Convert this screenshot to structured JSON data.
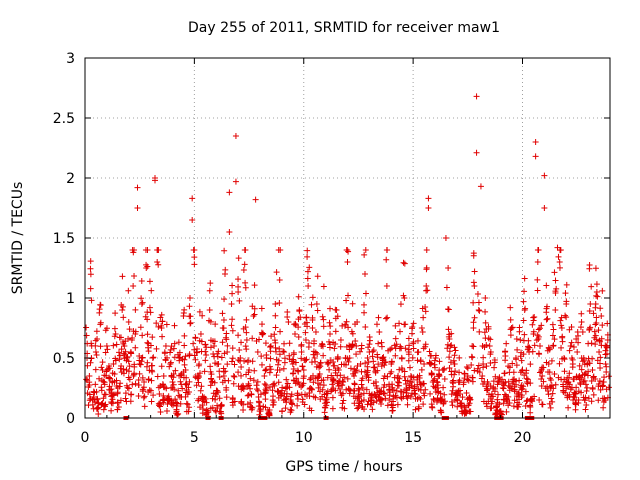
{
  "chart_data": {
    "type": "scatter",
    "title": "Day 255 of 2011, SRMTID for receiver maw1",
    "xlabel": "GPS time / hours",
    "ylabel": "SRMTID / TECUs",
    "xlim": [
      0,
      24
    ],
    "ylim": [
      0,
      3
    ],
    "x_ticks": [
      0,
      5,
      10,
      15,
      20
    ],
    "x_tick_labels": [
      "0",
      "5",
      "10",
      "15",
      "20"
    ],
    "y_ticks": [
      0,
      0.5,
      1,
      1.5,
      2,
      2.5,
      3
    ],
    "y_tick_labels": [
      "0",
      "0.5",
      "1",
      "1.5",
      "2",
      "2.5",
      "3"
    ],
    "grid": true,
    "marker": "+",
    "color": "#e00000",
    "series": [
      {
        "name": "SRMTID",
        "notable_points": [
          {
            "x": 2.4,
            "y": 1.92
          },
          {
            "x": 3.2,
            "y": 2.0
          },
          {
            "x": 3.2,
            "y": 1.98
          },
          {
            "x": 4.9,
            "y": 1.83
          },
          {
            "x": 4.9,
            "y": 1.65
          },
          {
            "x": 6.6,
            "y": 1.88
          },
          {
            "x": 6.9,
            "y": 2.35
          },
          {
            "x": 6.9,
            "y": 1.97
          },
          {
            "x": 7.8,
            "y": 1.82
          },
          {
            "x": 15.7,
            "y": 1.83
          },
          {
            "x": 15.7,
            "y": 1.75
          },
          {
            "x": 17.9,
            "y": 2.68
          },
          {
            "x": 17.9,
            "y": 2.21
          },
          {
            "x": 18.1,
            "y": 1.93
          },
          {
            "x": 20.6,
            "y": 2.3
          },
          {
            "x": 20.6,
            "y": 2.18
          },
          {
            "x": 21.0,
            "y": 2.02
          },
          {
            "x": 21.0,
            "y": 1.75
          },
          {
            "x": 2.4,
            "y": 1.75
          },
          {
            "x": 6.6,
            "y": 1.55
          },
          {
            "x": 16.5,
            "y": 1.5
          },
          {
            "x": 21.6,
            "y": 1.42
          }
        ],
        "bulk_points": [
          [
            0.1,
            0.62
          ],
          [
            0.2,
            0.35
          ],
          [
            0.3,
            0.98
          ],
          [
            0.4,
            0.22
          ],
          [
            0.5,
            0.55
          ],
          [
            0.6,
            0.12
          ],
          [
            0.7,
            0.78
          ],
          [
            0.8,
            0.4
          ],
          [
            0.9,
            0.28
          ],
          [
            1.0,
            0.6
          ],
          [
            1.1,
            0.33
          ],
          [
            1.2,
            0.18
          ],
          [
            1.3,
            0.45
          ],
          [
            1.4,
            0.7
          ],
          [
            1.5,
            0.25
          ],
          [
            1.6,
            0.52
          ],
          [
            1.7,
            0.9
          ],
          [
            1.8,
            0.6
          ],
          [
            1.9,
            0.4
          ],
          [
            2.0,
            0.8
          ],
          [
            2.1,
            0.55
          ],
          [
            2.2,
            1.1
          ],
          [
            2.3,
            0.7
          ],
          [
            2.5,
            0.45
          ],
          [
            2.6,
            0.95
          ],
          [
            2.7,
            0.3
          ],
          [
            2.8,
            1.25
          ],
          [
            2.9,
            0.62
          ],
          [
            3.0,
            0.88
          ],
          [
            3.1,
            0.5
          ],
          [
            3.3,
            1.3
          ],
          [
            3.4,
            0.2
          ],
          [
            3.5,
            0.75
          ],
          [
            3.6,
            0.35
          ],
          [
            3.7,
            0.6
          ],
          [
            3.8,
            0.15
          ],
          [
            3.9,
            0.45
          ],
          [
            4.0,
            0.3
          ],
          [
            4.1,
            0.62
          ],
          [
            4.2,
            0.1
          ],
          [
            4.3,
            0.5
          ],
          [
            4.4,
            0.28
          ],
          [
            4.5,
            0.85
          ],
          [
            4.6,
            0.4
          ],
          [
            4.7,
            0.2
          ],
          [
            4.8,
            1.0
          ],
          [
            5.0,
            1.28
          ],
          [
            5.1,
            0.55
          ],
          [
            5.2,
            0.35
          ],
          [
            5.3,
            0.7
          ],
          [
            5.4,
            0.15
          ],
          [
            5.5,
            0.48
          ],
          [
            5.6,
            0.05
          ],
          [
            5.7,
            0.9
          ],
          [
            5.8,
            0.3
          ],
          [
            5.9,
            0.6
          ],
          [
            6.0,
            0.2
          ],
          [
            6.1,
            0.45
          ],
          [
            6.2,
            0.1
          ],
          [
            6.3,
            0.75
          ],
          [
            6.4,
            1.2
          ],
          [
            6.5,
            0.55
          ],
          [
            6.7,
            0.95
          ],
          [
            6.8,
            0.35
          ],
          [
            7.0,
            1.05
          ],
          [
            7.1,
            0.5
          ],
          [
            7.2,
            0.25
          ],
          [
            7.3,
            1.28
          ],
          [
            7.4,
            0.65
          ],
          [
            7.5,
            0.4
          ],
          [
            7.6,
            0.2
          ],
          [
            7.7,
            0.85
          ],
          [
            7.9,
            0.55
          ],
          [
            8.0,
            0.1
          ],
          [
            8.1,
            0.7
          ],
          [
            8.2,
            0.35
          ],
          [
            8.3,
            0.5
          ],
          [
            8.4,
            0.05
          ],
          [
            8.5,
            0.6
          ],
          [
            8.6,
            0.28
          ],
          [
            8.7,
            0.95
          ],
          [
            8.8,
            0.4
          ],
          [
            8.9,
            1.15
          ],
          [
            9.0,
            0.2
          ],
          [
            9.1,
            0.55
          ],
          [
            9.2,
            0.32
          ],
          [
            9.3,
            0.8
          ],
          [
            9.4,
            0.15
          ],
          [
            9.5,
            0.45
          ],
          [
            9.6,
            0.7
          ],
          [
            9.7,
            0.3
          ],
          [
            9.8,
            0.9
          ],
          [
            9.9,
            0.55
          ],
          [
            10.0,
            0.4
          ],
          [
            10.1,
            0.65
          ],
          [
            10.2,
            1.1
          ],
          [
            10.3,
            0.25
          ],
          [
            10.4,
            0.75
          ],
          [
            10.5,
            0.5
          ],
          [
            10.6,
            0.95
          ],
          [
            10.7,
            0.35
          ],
          [
            10.8,
            0.6
          ],
          [
            10.9,
            0.82
          ],
          [
            11.0,
            0.15
          ],
          [
            11.1,
            0.45
          ],
          [
            11.2,
            0.7
          ],
          [
            11.3,
            0.28
          ],
          [
            11.4,
            0.58
          ],
          [
            11.5,
            0.9
          ],
          [
            11.6,
            0.4
          ],
          [
            11.7,
            0.65
          ],
          [
            11.8,
            0.3
          ],
          [
            11.9,
            0.78
          ],
          [
            12.0,
            1.3
          ],
          [
            12.1,
            0.5
          ],
          [
            12.2,
            0.72
          ],
          [
            12.3,
            0.35
          ],
          [
            12.4,
            0.6
          ],
          [
            12.5,
            0.2
          ],
          [
            12.6,
            0.45
          ],
          [
            12.7,
            0.25
          ],
          [
            12.8,
            1.2
          ],
          [
            12.9,
            0.38
          ],
          [
            13.0,
            0.55
          ],
          [
            13.1,
            0.15
          ],
          [
            13.2,
            0.42
          ],
          [
            13.3,
            0.3
          ],
          [
            13.4,
            0.62
          ],
          [
            13.5,
            0.22
          ],
          [
            13.6,
            0.5
          ],
          [
            13.7,
            0.35
          ],
          [
            13.8,
            1.1
          ],
          [
            13.9,
            0.28
          ],
          [
            14.0,
            0.45
          ],
          [
            14.1,
            0.18
          ],
          [
            14.2,
            0.58
          ],
          [
            14.3,
            0.3
          ],
          [
            14.4,
            0.72
          ],
          [
            14.5,
            0.4
          ],
          [
            14.6,
            1.0
          ],
          [
            14.7,
            0.25
          ],
          [
            14.8,
            0.55
          ],
          [
            14.9,
            0.35
          ],
          [
            15.0,
            0.62
          ],
          [
            15.1,
            0.2
          ],
          [
            15.2,
            0.48
          ],
          [
            15.3,
            0.3
          ],
          [
            15.4,
            0.75
          ],
          [
            15.5,
            0.45
          ],
          [
            15.6,
            1.1
          ],
          [
            15.8,
            0.52
          ],
          [
            15.9,
            0.3
          ],
          [
            16.0,
            0.42
          ],
          [
            16.1,
            0.25
          ],
          [
            16.2,
            0.35
          ],
          [
            16.3,
            0.15
          ],
          [
            16.4,
            0.4
          ],
          [
            16.6,
            1.25
          ],
          [
            16.7,
            0.6
          ],
          [
            16.8,
            0.3
          ],
          [
            16.9,
            0.45
          ],
          [
            17.0,
            0.2
          ],
          [
            17.1,
            0.38
          ],
          [
            17.2,
            0.1
          ],
          [
            17.3,
            0.28
          ],
          [
            17.4,
            0.05
          ],
          [
            17.5,
            0.35
          ],
          [
            17.6,
            0.15
          ],
          [
            17.7,
            0.6
          ],
          [
            17.8,
            1.1
          ],
          [
            18.0,
            0.9
          ],
          [
            18.2,
            0.45
          ],
          [
            18.3,
            1.0
          ],
          [
            18.4,
            0.3
          ],
          [
            18.5,
            0.6
          ],
          [
            18.6,
            0.2
          ],
          [
            18.7,
            0.42
          ],
          [
            18.8,
            0.1
          ],
          [
            18.9,
            0.3
          ],
          [
            19.0,
            0.05
          ],
          [
            19.1,
            0.25
          ],
          [
            19.2,
            0.55
          ],
          [
            19.3,
            0.15
          ],
          [
            19.4,
            0.38
          ],
          [
            19.5,
            0.75
          ],
          [
            19.6,
            0.3
          ],
          [
            19.7,
            0.5
          ],
          [
            19.8,
            0.2
          ],
          [
            19.9,
            0.65
          ],
          [
            20.0,
            0.4
          ],
          [
            20.1,
            0.9
          ],
          [
            20.2,
            0.3
          ],
          [
            20.3,
            0.55
          ],
          [
            20.4,
            0.15
          ],
          [
            20.5,
            0.7
          ],
          [
            20.7,
            1.3
          ],
          [
            20.8,
            0.6
          ],
          [
            20.9,
            0.35
          ],
          [
            21.1,
            0.82
          ],
          [
            21.2,
            0.45
          ],
          [
            21.3,
            0.25
          ],
          [
            21.4,
            0.6
          ],
          [
            21.5,
            0.9
          ],
          [
            21.7,
            1.3
          ],
          [
            21.8,
            0.75
          ],
          [
            21.9,
            0.5
          ],
          [
            22.0,
            0.95
          ],
          [
            22.1,
            0.3
          ],
          [
            22.2,
            0.6
          ],
          [
            22.3,
            0.45
          ],
          [
            22.4,
            0.2
          ],
          [
            22.5,
            0.55
          ],
          [
            22.6,
            0.35
          ],
          [
            22.7,
            0.8
          ],
          [
            22.8,
            0.5
          ],
          [
            22.9,
            0.28
          ],
          [
            23.0,
            0.62
          ],
          [
            23.1,
            0.95
          ],
          [
            23.2,
            0.4
          ],
          [
            23.3,
            0.72
          ],
          [
            23.4,
            1.05
          ],
          [
            23.5,
            0.55
          ],
          [
            23.6,
            0.85
          ],
          [
            23.7,
            0.3
          ],
          [
            23.8,
            0.45
          ],
          [
            23.9,
            0.65
          ]
        ]
      }
    ]
  }
}
